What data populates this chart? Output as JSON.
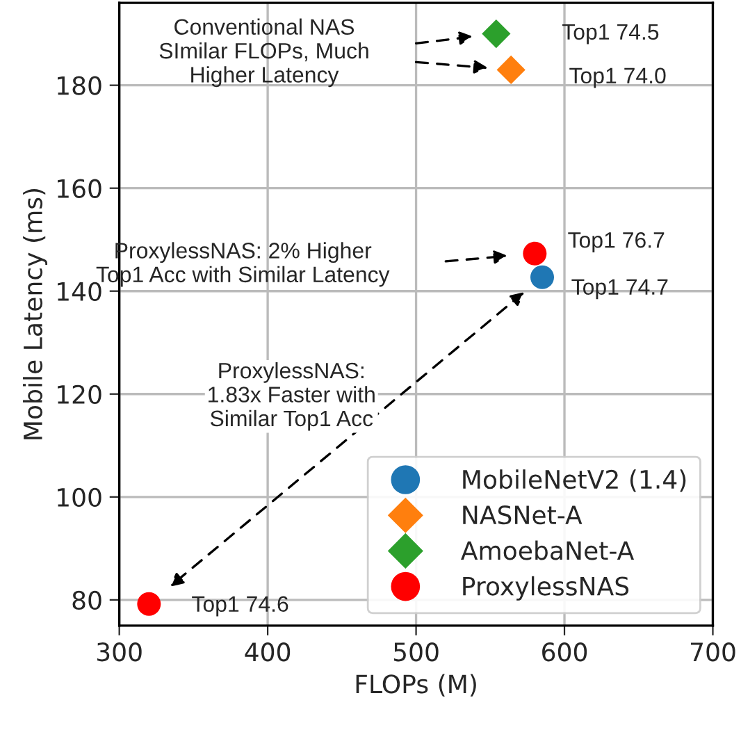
{
  "chart_data": {
    "type": "scatter",
    "xlabel": "FLOPs (M)",
    "ylabel": "Mobile Latency (ms)",
    "xlim": [
      300,
      700
    ],
    "xticks": [
      300,
      400,
      500,
      600,
      700
    ],
    "ylim": [
      75,
      196
    ],
    "yticks": [
      80,
      100,
      120,
      140,
      160,
      180
    ],
    "grid": true,
    "legend": "bottom right",
    "series": [
      {
        "name": "MobileNetV2 (1.4)",
        "color": "#1f77b4",
        "marker": "circle",
        "x": [
          585
        ],
        "values": [
          142.7
        ]
      },
      {
        "name": "NASNet-A",
        "color": "#ff7f0e",
        "marker": "diamond",
        "x": [
          564
        ],
        "values": [
          183
        ]
      },
      {
        "name": "AmoebaNet-A",
        "color": "#2ca02c",
        "marker": "diamond",
        "x": [
          554
        ],
        "values": [
          190
        ]
      },
      {
        "name": "ProxylessNAS",
        "color": "#ff0000",
        "marker": "circle",
        "x": [
          580,
          320
        ],
        "values": [
          147.3,
          79.2
        ]
      }
    ],
    "annotations": [
      {
        "text": "Top1 74.7",
        "x": 585,
        "y": 142.7
      },
      {
        "text": "Top1 74.0",
        "x": 564,
        "y": 183
      },
      {
        "text": "Top1 74.5",
        "x": 554,
        "y": 190
      },
      {
        "text": "Top1 76.7",
        "x": 580,
        "y": 147.3
      },
      {
        "text": "Top1 74.6",
        "x": 320,
        "y": 79.2
      },
      "Conventional NAS\nSImilar FLOPs, Much\nHigher Latency",
      "ProxylessNAS: 2% Higher\nTop1 Acc with Similar Latency",
      "ProxylessNAS:\n1.83x Faster with\nSimilar Top1 Acc"
    ]
  }
}
